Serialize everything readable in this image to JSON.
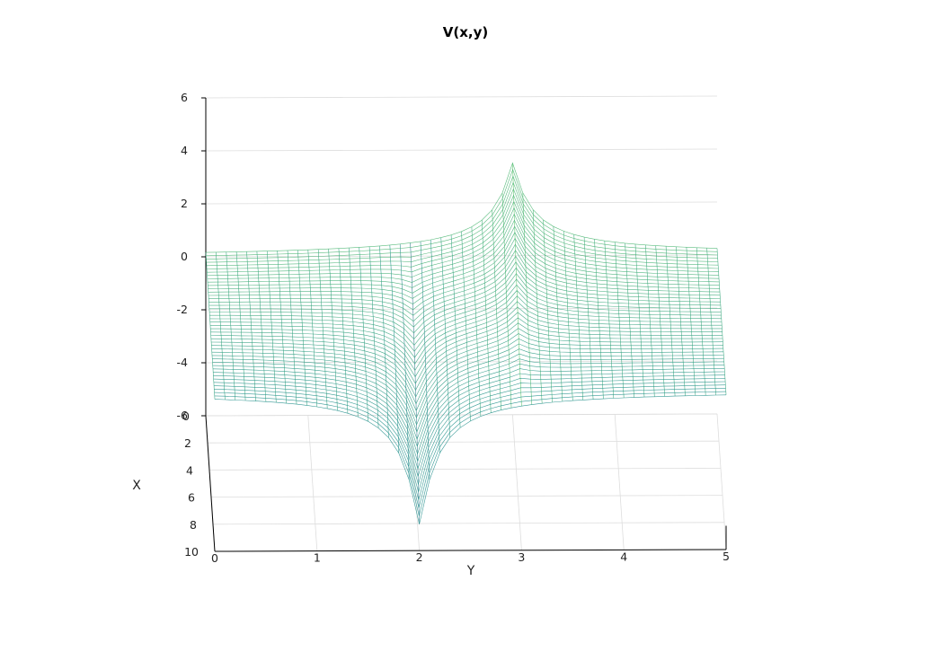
{
  "chart_data": {
    "type": "surface-wireframe",
    "title": "V(x,y)",
    "xlabel": "X",
    "ylabel": "Y",
    "zlabel": "",
    "xlim": [
      0,
      10
    ],
    "ylim": [
      0,
      5
    ],
    "zlim": [
      -6,
      6
    ],
    "x_ticks": [
      "0",
      "2",
      "4",
      "6",
      "8",
      "10"
    ],
    "y_ticks": [
      "0",
      "1",
      "2",
      "3",
      "4",
      "5"
    ],
    "z_ticks": [
      "-6",
      "-4",
      "-2",
      "0",
      "2",
      "4",
      "6"
    ],
    "surface": {
      "description_values": {
        "baseline": 0,
        "min_value": -5.0,
        "min_location": {
          "x": 10,
          "y": 2
        },
        "max_value": 3.5,
        "max_location": {
          "x": 0,
          "y": 3
        }
      },
      "x_samples": 45,
      "y_samples": 51
    },
    "colormap": [
      "#440154",
      "#3b528b",
      "#21918c",
      "#5ec962",
      "#fde725"
    ]
  }
}
